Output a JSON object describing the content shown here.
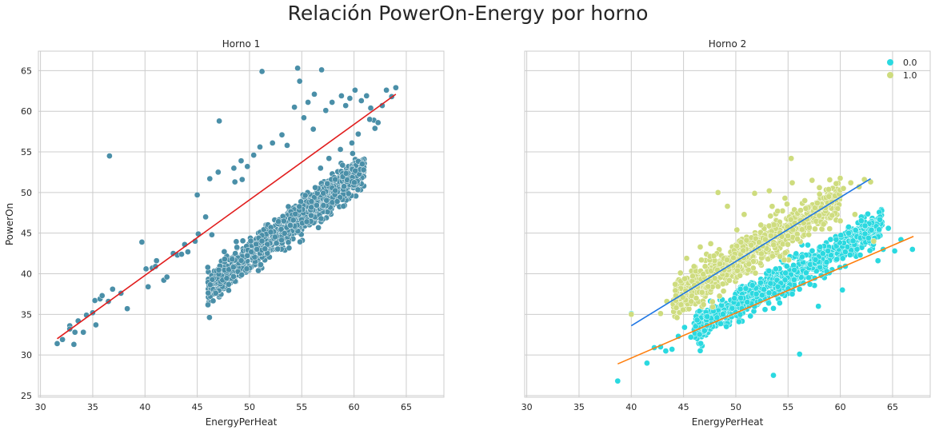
{
  "title": "Relación PowerOn-Energy por horno",
  "colors": {
    "scatter_h1": "#4a8fa8",
    "fit_h1": "#e11d1d",
    "class0": "#2ad9e0",
    "class1": "#cedc7e",
    "fit_class0": "#ff7f0e",
    "fit_class1": "#1f77e4",
    "grid": "#cccccc",
    "spine": "#cccccc"
  },
  "chart_data": [
    {
      "type": "scatter",
      "title": "Horno 1",
      "xlabel": "EnergyPerHeat",
      "ylabel": "PowerOn",
      "xlim": [
        29.8,
        68.6
      ],
      "ylim": [
        24.8,
        67.4
      ],
      "xticks": [
        30,
        35,
        40,
        45,
        50,
        55,
        60,
        65
      ],
      "yticks": [
        25,
        30,
        35,
        40,
        45,
        50,
        55,
        60,
        65
      ],
      "grid": true,
      "series": [
        {
          "cloud": {
            "x": [
              46,
              61
            ],
            "slope": 1.0,
            "intercept": -8.0,
            "spread": 1.7,
            "n": 1200
          },
          "points": [
            [
              31.6,
              31.4
            ],
            [
              32.1,
              31.9
            ],
            [
              32.8,
              33.6
            ],
            [
              32.8,
              33.2
            ],
            [
              33.2,
              31.3
            ],
            [
              33.3,
              32.8
            ],
            [
              33.6,
              34.2
            ],
            [
              34.1,
              32.8
            ],
            [
              34.4,
              34.9
            ],
            [
              35.0,
              35.2
            ],
            [
              35.3,
              33.7
            ],
            [
              35.2,
              36.7
            ],
            [
              35.7,
              36.9
            ],
            [
              35.9,
              37.3
            ],
            [
              36.5,
              36.6
            ],
            [
              36.6,
              54.5
            ],
            [
              36.9,
              38.1
            ],
            [
              37.7,
              37.6
            ],
            [
              38.3,
              35.7
            ],
            [
              39.7,
              43.9
            ],
            [
              40.1,
              40.6
            ],
            [
              40.3,
              38.4
            ],
            [
              40.7,
              40.7
            ],
            [
              41.0,
              40.9
            ],
            [
              41.1,
              41.6
            ],
            [
              41.8,
              39.2
            ],
            [
              42.1,
              39.6
            ],
            [
              42.7,
              42.5
            ],
            [
              43.1,
              42.3
            ],
            [
              43.5,
              42.4
            ],
            [
              43.8,
              43.6
            ],
            [
              44.1,
              42.7
            ],
            [
              44.8,
              44.0
            ],
            [
              45.1,
              44.9
            ],
            [
              45.0,
              49.7
            ],
            [
              45.8,
              47.0
            ],
            [
              46.4,
              44.8
            ],
            [
              47.1,
              58.8
            ],
            [
              48.6,
              51.3
            ],
            [
              49.3,
              51.6
            ],
            [
              49.8,
              53.2
            ],
            [
              51.2,
              64.9
            ],
            [
              53.1,
              57.1
            ],
            [
              53.6,
              55.8
            ],
            [
              54.3,
              60.5
            ],
            [
              54.6,
              65.3
            ],
            [
              54.8,
              63.7
            ],
            [
              55.2,
              59.2
            ],
            [
              56.1,
              57.8
            ],
            [
              56.9,
              65.1
            ],
            [
              57.3,
              60.1
            ],
            [
              57.9,
              61.1
            ],
            [
              58.8,
              61.9
            ],
            [
              59.2,
              60.7
            ],
            [
              59.6,
              61.6
            ],
            [
              60.1,
              62.6
            ],
            [
              60.7,
              61.3
            ],
            [
              61.2,
              61.9
            ],
            [
              61.6,
              60.4
            ],
            [
              61.9,
              58.9
            ],
            [
              62.3,
              58.6
            ],
            [
              62.7,
              60.7
            ],
            [
              63.1,
              62.6
            ],
            [
              63.6,
              61.8
            ],
            [
              64.0,
              62.9
            ],
            [
              61.5,
              59.0
            ],
            [
              62.0,
              57.9
            ],
            [
              60.4,
              57.2
            ],
            [
              59.8,
              56.1
            ],
            [
              58.7,
              55.3
            ],
            [
              57.6,
              54.2
            ],
            [
              56.8,
              53.0
            ],
            [
              52.2,
              56.1
            ],
            [
              51.0,
              55.6
            ],
            [
              50.4,
              54.6
            ],
            [
              49.2,
              53.9
            ],
            [
              48.5,
              53.0
            ],
            [
              47.0,
              52.5
            ],
            [
              46.2,
              51.7
            ],
            [
              55.6,
              61.1
            ],
            [
              56.2,
              62.1
            ]
          ]
        }
      ],
      "fits": [
        {
          "x": [
            31.6,
            64.0
          ],
          "y": [
            32.0,
            62.1
          ]
        }
      ]
    },
    {
      "type": "scatter",
      "title": "Horno 2",
      "xlabel": "EnergyPerHeat",
      "ylabel": "",
      "xlim": [
        29.8,
        68.6
      ],
      "ylim": [
        24.8,
        67.4
      ],
      "xticks": [
        30,
        35,
        40,
        45,
        50,
        55,
        60,
        65
      ],
      "yticks": [
        25,
        30,
        35,
        40,
        45,
        50,
        55,
        60,
        65
      ],
      "grid": true,
      "legend": {
        "placement": "top-right",
        "entries": [
          "0.0",
          "1.0"
        ]
      },
      "series": [
        {
          "name": "0.0",
          "cloud": {
            "x": [
              46,
              64
            ],
            "slope": 0.7,
            "intercept": 1.1,
            "spread": 1.6,
            "n": 900
          },
          "points": [
            [
              38.7,
              26.8
            ],
            [
              40.0,
              35.1
            ],
            [
              41.5,
              29.0
            ],
            [
              42.2,
              30.9
            ],
            [
              42.8,
              31.0
            ],
            [
              43.3,
              30.5
            ],
            [
              43.9,
              30.7
            ],
            [
              44.5,
              32.3
            ],
            [
              45.1,
              33.4
            ],
            [
              45.7,
              32.2
            ],
            [
              46.3,
              34.3
            ],
            [
              47.0,
              33.0
            ],
            [
              53.6,
              27.5
            ],
            [
              56.1,
              30.1
            ],
            [
              57.9,
              36.0
            ],
            [
              64.1,
              43.0
            ],
            [
              65.2,
              42.8
            ],
            [
              65.8,
              44.2
            ],
            [
              66.9,
              43.0
            ],
            [
              64.6,
              45.6
            ],
            [
              63.6,
              41.6
            ],
            [
              62.7,
              44.4
            ],
            [
              61.9,
              42.3
            ],
            [
              60.8,
              45.0
            ],
            [
              59.6,
              44.2
            ],
            [
              58.7,
              40.3
            ],
            [
              57.1,
              38.7
            ],
            [
              55.4,
              37.5
            ],
            [
              54.2,
              36.4
            ],
            [
              52.8,
              35.6
            ],
            [
              51.4,
              34.8
            ],
            [
              50.3,
              34.1
            ],
            [
              49.1,
              33.5
            ],
            [
              48.2,
              34.6
            ],
            [
              48.7,
              36.8
            ],
            [
              60.2,
              38.0
            ]
          ]
        },
        {
          "name": "1.0",
          "cloud": {
            "x": [
              44,
              60
            ],
            "slope": 0.786,
            "intercept": 2.2,
            "spread": 1.9,
            "n": 900
          },
          "points": [
            [
              40.0,
              35.0
            ],
            [
              42.8,
              35.1
            ],
            [
              43.4,
              36.6
            ],
            [
              44.2,
              38.7
            ],
            [
              44.7,
              40.1
            ],
            [
              45.3,
              41.9
            ],
            [
              46.0,
              40.9
            ],
            [
              46.6,
              43.3
            ],
            [
              47.6,
              43.7
            ],
            [
              48.3,
              50.0
            ],
            [
              49.2,
              48.3
            ],
            [
              50.8,
              47.3
            ],
            [
              51.8,
              49.9
            ],
            [
              53.2,
              50.2
            ],
            [
              54.7,
              49.3
            ],
            [
              55.4,
              51.2
            ],
            [
              55.3,
              54.2
            ],
            [
              56.6,
              49.0
            ],
            [
              57.3,
              51.5
            ],
            [
              58.0,
              50.6
            ],
            [
              58.9,
              49.5
            ],
            [
              59.6,
              51.1
            ],
            [
              60.3,
              50.5
            ],
            [
              61.0,
              51.2
            ],
            [
              61.8,
              50.7
            ],
            [
              62.3,
              51.6
            ],
            [
              62.9,
              51.3
            ],
            [
              63.2,
              44.0
            ],
            [
              61.4,
              47.3
            ],
            [
              60.0,
              46.5
            ],
            [
              58.4,
              46.1
            ],
            [
              57.8,
              48.7
            ],
            [
              56.2,
              47.8
            ],
            [
              54.0,
              47.7
            ],
            [
              52.4,
              46.0
            ],
            [
              50.1,
              45.4
            ]
          ]
        }
      ],
      "fits": [
        {
          "series": "1.0",
          "x": [
            40.0,
            62.9
          ],
          "y": [
            33.6,
            51.7
          ]
        },
        {
          "series": "0.0",
          "x": [
            38.7,
            67.0
          ],
          "y": [
            28.9,
            44.6
          ]
        }
      ]
    }
  ]
}
